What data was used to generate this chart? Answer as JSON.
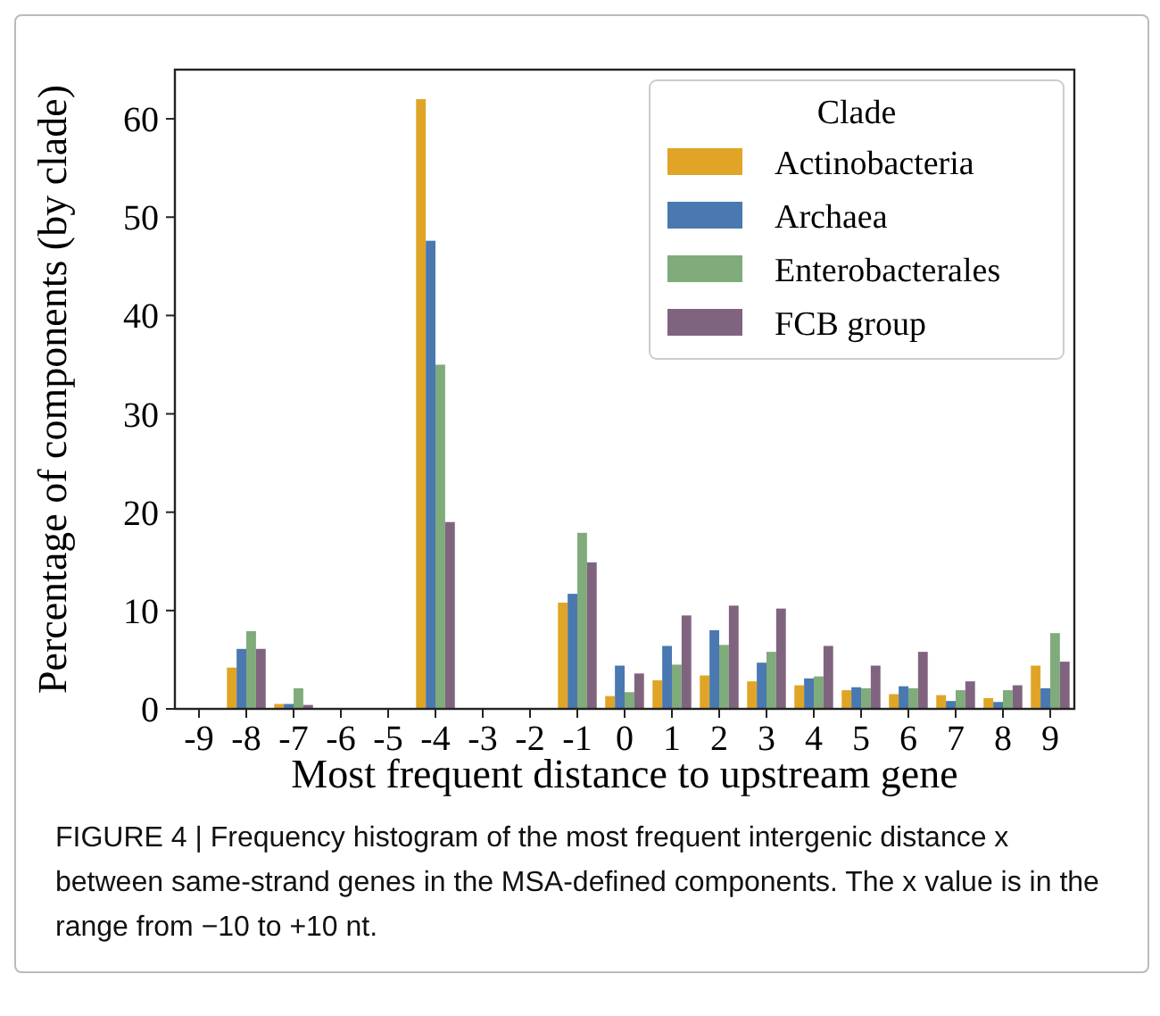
{
  "chart_data": {
    "type": "bar",
    "xlabel": "Most frequent distance to upstream gene",
    "ylabel": "Percentage of components (by clade)",
    "categories": [
      "-9",
      "-8",
      "-7",
      "-6",
      "-5",
      "-4",
      "-3",
      "-2",
      "-1",
      "0",
      "1",
      "2",
      "3",
      "4",
      "5",
      "6",
      "7",
      "8",
      "9"
    ],
    "series": [
      {
        "name": "Actinobacteria",
        "color": "#e0a526",
        "values": [
          0,
          4.2,
          0.5,
          0,
          0,
          62.0,
          0,
          0,
          10.8,
          1.3,
          2.9,
          3.4,
          2.8,
          2.4,
          1.9,
          1.5,
          1.4,
          1.1,
          4.4
        ]
      },
      {
        "name": "Archaea",
        "color": "#4a78b0",
        "values": [
          0,
          6.1,
          0.5,
          0,
          0,
          47.6,
          0,
          0,
          11.7,
          4.4,
          6.4,
          8.0,
          4.7,
          3.1,
          2.2,
          2.3,
          0.8,
          0.7,
          2.1
        ]
      },
      {
        "name": "Enterobacterales",
        "color": "#80ab7b",
        "values": [
          0,
          7.9,
          2.1,
          0,
          0,
          35.0,
          0,
          0,
          17.9,
          1.7,
          4.5,
          6.5,
          5.8,
          3.3,
          2.1,
          2.1,
          1.9,
          1.9,
          7.7
        ]
      },
      {
        "name": "FCB group",
        "color": "#80647f",
        "values": [
          0,
          6.1,
          0.4,
          0,
          0,
          19.0,
          0,
          0,
          14.9,
          3.6,
          9.5,
          10.5,
          10.2,
          6.4,
          4.4,
          5.8,
          2.8,
          2.4,
          4.8
        ]
      }
    ],
    "ylim": [
      0,
      65
    ],
    "yticks": [
      0,
      10,
      20,
      30,
      40,
      50,
      60
    ],
    "grid": false,
    "legend": "top right",
    "legend_title": "Clade",
    "annotations": [
      "FIGURE 4 | Frequency histogram of the most frequent intergenic distance x between same-strand genes in the MSA-defined components. The x value is in the range from −10 to +10 nt."
    ]
  }
}
